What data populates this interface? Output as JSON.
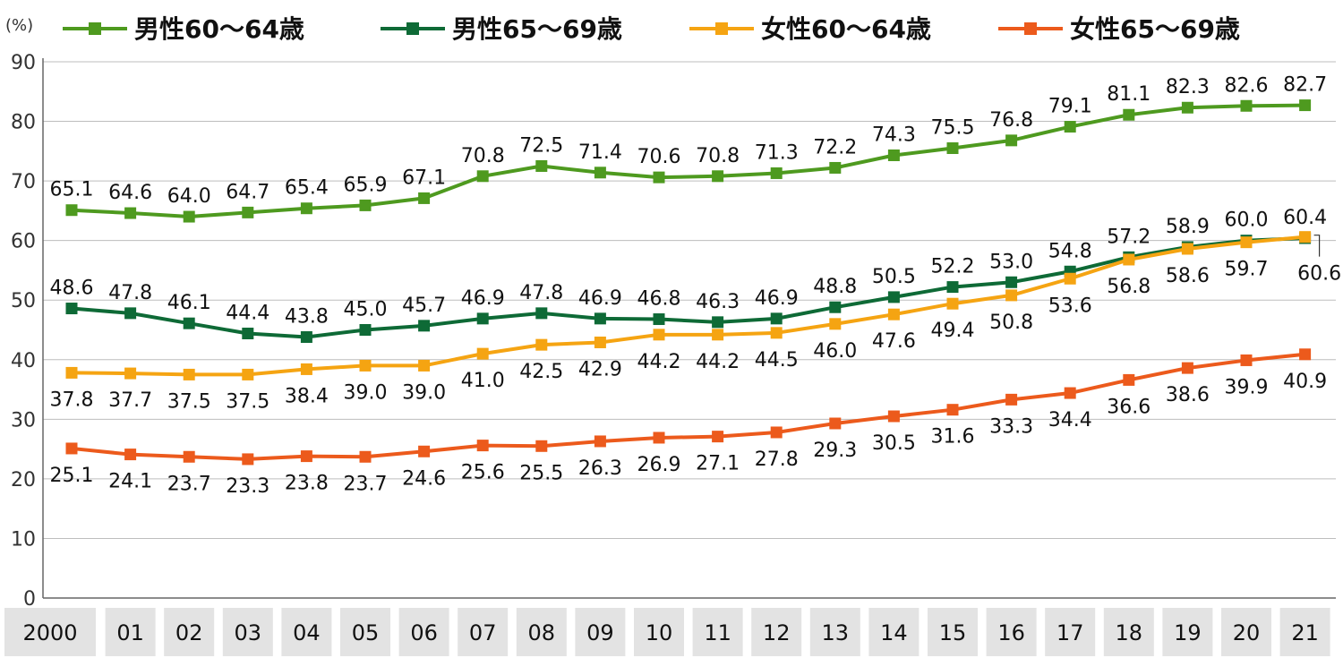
{
  "chart_data": {
    "type": "line",
    "unit_label": "(%)",
    "categories": [
      "2000",
      "01",
      "02",
      "03",
      "04",
      "05",
      "06",
      "07",
      "08",
      "09",
      "10",
      "11",
      "12",
      "13",
      "14",
      "15",
      "16",
      "17",
      "18",
      "19",
      "20",
      "21"
    ],
    "ylim": [
      0,
      90
    ],
    "yticks": [
      0,
      10,
      20,
      30,
      40,
      50,
      60,
      70,
      80,
      90
    ],
    "grid": true,
    "legend_position": "top",
    "series": [
      {
        "name": "男性60～64歳",
        "color": "#4e9a1f",
        "values": [
          65.1,
          64.6,
          64.0,
          64.7,
          65.4,
          65.9,
          67.1,
          70.8,
          72.5,
          71.4,
          70.6,
          70.8,
          71.3,
          72.2,
          74.3,
          75.5,
          76.8,
          79.1,
          81.1,
          82.3,
          82.6,
          82.7
        ]
      },
      {
        "name": "男性65～69歳",
        "color": "#0e6a36",
        "values": [
          48.6,
          47.8,
          46.1,
          44.4,
          43.8,
          45.0,
          45.7,
          46.9,
          47.8,
          46.9,
          46.8,
          46.3,
          46.9,
          48.8,
          50.5,
          52.2,
          53.0,
          54.8,
          57.2,
          58.9,
          60.0,
          60.4
        ]
      },
      {
        "name": "女性60～64歳",
        "color": "#f5a412",
        "values": [
          37.8,
          37.7,
          37.5,
          37.5,
          38.4,
          39.0,
          39.0,
          41.0,
          42.5,
          42.9,
          44.2,
          44.2,
          44.5,
          46.0,
          47.6,
          49.4,
          50.8,
          53.6,
          56.8,
          58.6,
          59.7,
          60.6
        ]
      },
      {
        "name": "女性65～69歳",
        "color": "#ec5a1c",
        "values": [
          25.1,
          24.1,
          23.7,
          23.3,
          23.8,
          23.7,
          24.6,
          25.6,
          25.5,
          26.3,
          26.9,
          27.1,
          27.8,
          29.3,
          30.5,
          31.6,
          33.3,
          34.4,
          36.6,
          38.6,
          39.9,
          40.9
        ]
      }
    ]
  }
}
